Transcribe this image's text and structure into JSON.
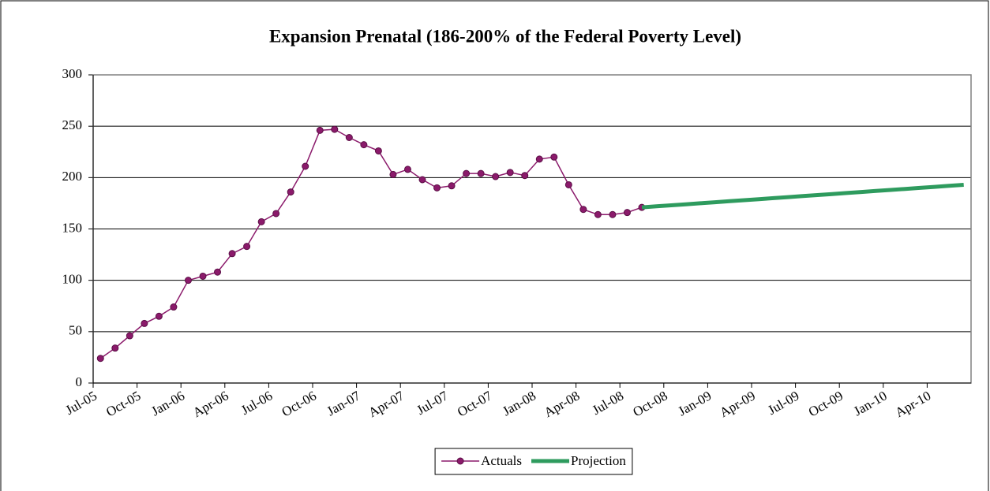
{
  "chart_data": {
    "type": "line",
    "title": "Expansion Prenatal (186-200% of the Federal Poverty Level)",
    "categories": [
      "Jul-05",
      null,
      null,
      "Oct-05",
      null,
      null,
      "Jan-06",
      null,
      null,
      "Apr-06",
      null,
      null,
      "Jul-06",
      null,
      null,
      "Oct-06",
      null,
      null,
      "Jan-07",
      null,
      null,
      "Apr-07",
      null,
      null,
      "Jul-07",
      null,
      null,
      "Oct-07",
      null,
      null,
      "Jan-08",
      null,
      null,
      "Apr-08",
      null,
      null,
      "Jul-08",
      null,
      null,
      "Oct-08",
      null,
      null,
      "Jan-09",
      null,
      null,
      "Apr-09",
      null,
      null,
      "Jul-09",
      null,
      null,
      "Oct-09",
      null,
      null,
      "Jan-10",
      null,
      null,
      "Apr-10",
      null,
      null
    ],
    "series": [
      {
        "name": "Actuals",
        "color": "#8b1a6b",
        "markers": true,
        "values": [
          24,
          34,
          46,
          58,
          65,
          74,
          100,
          104,
          108,
          126,
          133,
          157,
          165,
          186,
          211,
          246,
          247,
          239,
          232,
          226,
          203,
          208,
          198,
          190,
          192,
          204,
          204,
          201,
          205,
          202,
          218,
          220,
          193,
          169,
          164,
          164,
          166,
          171,
          null,
          null,
          null,
          null,
          null,
          null,
          null,
          null,
          null,
          null,
          null,
          null,
          null,
          null,
          null,
          null,
          null,
          null,
          null,
          null,
          null,
          null
        ]
      },
      {
        "name": "Projection",
        "color": "#2e9b5e",
        "markers": false,
        "values": [
          null,
          null,
          null,
          null,
          null,
          null,
          null,
          null,
          null,
          null,
          null,
          null,
          null,
          null,
          null,
          null,
          null,
          null,
          null,
          null,
          null,
          null,
          null,
          null,
          null,
          null,
          null,
          null,
          null,
          null,
          null,
          null,
          null,
          null,
          null,
          null,
          null,
          171,
          172,
          173,
          174,
          175,
          176,
          177,
          178,
          179,
          180,
          181,
          182,
          183,
          184,
          185,
          186,
          187,
          188,
          189,
          190,
          191,
          192,
          193
        ]
      }
    ],
    "ylim": [
      0,
      300
    ],
    "yticks": [
      0,
      50,
      100,
      150,
      200,
      250,
      300
    ],
    "grid": true,
    "legend": "bottom"
  }
}
